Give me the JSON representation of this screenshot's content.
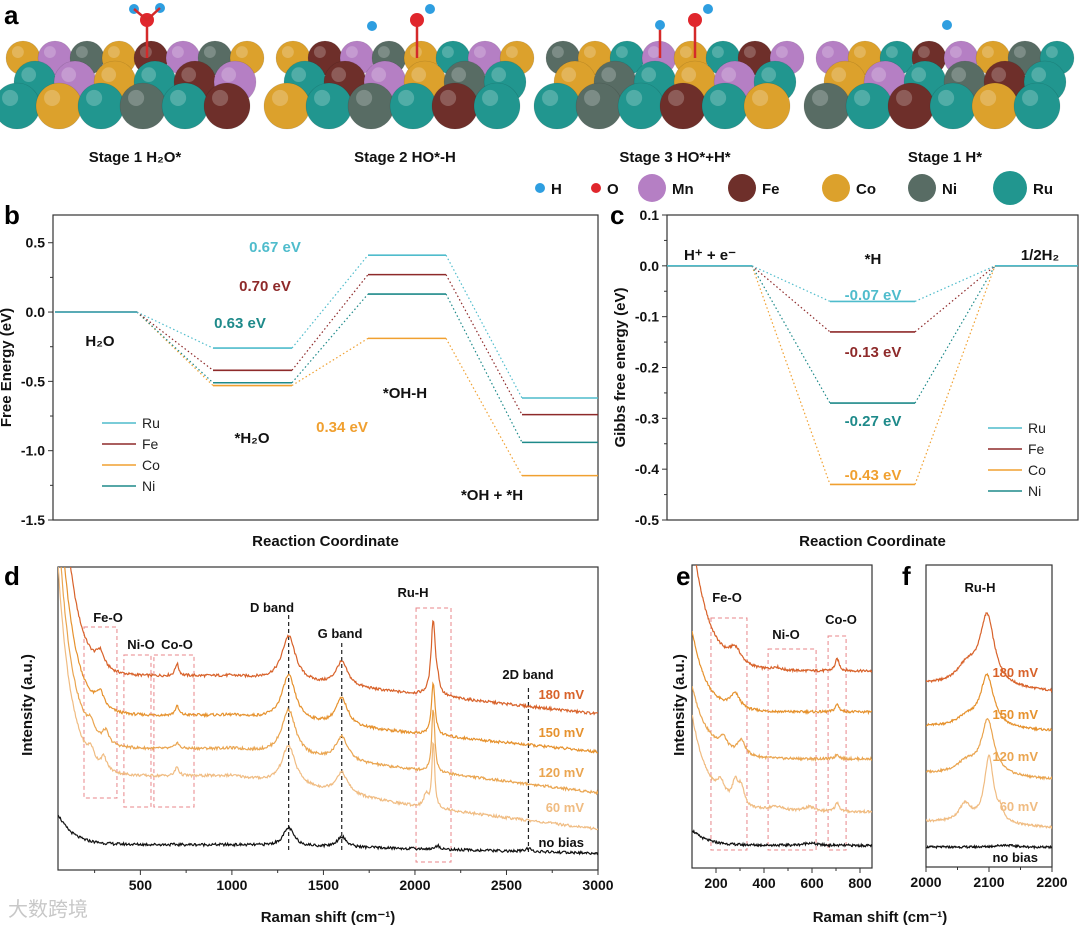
{
  "panel_letters": {
    "a": "a",
    "b": "b",
    "c": "c",
    "d": "d",
    "e": "e",
    "f": "f"
  },
  "structures": {
    "stages": [
      {
        "label": "Stage 1  H₂O*",
        "adsorbate": "H2O"
      },
      {
        "label": "Stage 2  HO*-H",
        "adsorbate": "HO-H"
      },
      {
        "label": "Stage 3  HO*+H*",
        "adsorbate": "HO+H"
      },
      {
        "label": "Stage 1  H*",
        "adsorbate": "H"
      }
    ],
    "atom_legend": [
      {
        "label": "H",
        "color": "#2e9ee0"
      },
      {
        "label": "O",
        "color": "#e0262c"
      },
      {
        "label": "Mn",
        "color": "#b57fc4"
      },
      {
        "label": "Fe",
        "color": "#6e2f2a"
      },
      {
        "label": "Co",
        "color": "#dca12c"
      },
      {
        "label": "Ni",
        "color": "#586c64"
      },
      {
        "label": "Ru",
        "color": "#21968f"
      }
    ]
  },
  "chart_data": [
    {
      "id": "b",
      "type": "line",
      "subtype": "energy-level-diagram",
      "xlabel": "Reaction Coordinate",
      "ylabel": "Free Energy (eV)",
      "ylim": [
        -1.5,
        0.7
      ],
      "yticks": [
        {
          "v": 0.5,
          "label": "0.5"
        },
        {
          "v": 0.0,
          "label": "0.0"
        },
        {
          "v": -0.5,
          "label": "-0.5"
        },
        {
          "v": -1.0,
          "label": "-1.0"
        },
        {
          "v": -1.5,
          "label": "-1.5"
        }
      ],
      "states": [
        "H₂O",
        "*H₂O",
        "*OH-H",
        "*OH + *H"
      ],
      "series": [
        {
          "name": "Ru",
          "color": "#4fbccc",
          "values": [
            0,
            -0.26,
            0.41,
            -0.62
          ]
        },
        {
          "name": "Fe",
          "color": "#8e2a2a",
          "values": [
            0,
            -0.42,
            0.27,
            -0.74
          ]
        },
        {
          "name": "Co",
          "color": "#f0a030",
          "values": [
            0,
            -0.53,
            -0.19,
            -1.18
          ]
        },
        {
          "name": "Ni",
          "color": "#1e8a8a",
          "values": [
            0,
            -0.51,
            0.13,
            -0.94
          ]
        }
      ],
      "annotations": [
        {
          "text": "0.67 eV",
          "color": "#4fbccc"
        },
        {
          "text": "0.70 eV",
          "color": "#8e2a2a"
        },
        {
          "text": "0.63 eV",
          "color": "#1e8a8a"
        },
        {
          "text": "0.34 eV",
          "color": "#f0a030"
        }
      ],
      "legend": "bottom-left"
    },
    {
      "id": "c",
      "type": "line",
      "subtype": "energy-level-diagram",
      "xlabel": "Reaction Coordinate",
      "ylabel": "Gibbs free energy (eV)",
      "ylim": [
        -0.5,
        0.1
      ],
      "yticks": [
        {
          "v": 0.1,
          "label": "0.1"
        },
        {
          "v": 0.0,
          "label": "0.0"
        },
        {
          "v": -0.1,
          "label": "-0.1"
        },
        {
          "v": -0.2,
          "label": "-0.2"
        },
        {
          "v": -0.3,
          "label": "-0.3"
        },
        {
          "v": -0.4,
          "label": "-0.4"
        },
        {
          "v": -0.5,
          "label": "-0.5"
        }
      ],
      "states": [
        "H⁺ + e⁻",
        "*H",
        "1/2H₂"
      ],
      "series": [
        {
          "name": "Ru",
          "color": "#4fbccc",
          "values": [
            0,
            -0.07,
            0
          ]
        },
        {
          "name": "Fe",
          "color": "#8e2a2a",
          "values": [
            0,
            -0.13,
            0
          ]
        },
        {
          "name": "Co",
          "color": "#f0a030",
          "values": [
            0,
            -0.43,
            0
          ]
        },
        {
          "name": "Ni",
          "color": "#1e8a8a",
          "values": [
            0,
            -0.27,
            0
          ]
        }
      ],
      "annotations": [
        {
          "text": "-0.07 eV",
          "color": "#4fbccc"
        },
        {
          "text": "-0.13 eV",
          "color": "#8e2a2a"
        },
        {
          "text": "-0.27 eV",
          "color": "#1e8a8a"
        },
        {
          "text": "-0.43 eV",
          "color": "#f0a030"
        }
      ],
      "legend": "bottom-right"
    },
    {
      "id": "d",
      "type": "line",
      "subtype": "raman-spectra",
      "xlabel": "Raman shift (cm⁻¹)",
      "ylabel": "Intensity (a.u.)",
      "xlim": [
        50,
        3000
      ],
      "ylim": [
        0,
        100
      ],
      "xticks": [
        {
          "v": 500,
          "label": "500"
        },
        {
          "v": 1000,
          "label": "1000"
        },
        {
          "v": 1500,
          "label": "1500"
        },
        {
          "v": 2000,
          "label": "2000"
        },
        {
          "v": 2500,
          "label": "2500"
        },
        {
          "v": 3000,
          "label": "3000"
        }
      ],
      "regions": [
        {
          "label": "Fe-O",
          "x": [
            192,
            372
          ]
        },
        {
          "label": "Ni-O",
          "x": [
            410,
            558
          ]
        },
        {
          "label": "Co-O",
          "x": [
            574,
            793
          ]
        },
        {
          "label": "Ru-H",
          "x": [
            2006,
            2197
          ]
        }
      ],
      "bands": [
        {
          "label": "D band",
          "x": 1310
        },
        {
          "label": "G band",
          "x": 1600
        },
        {
          "label": "2D band",
          "x": 2620
        }
      ],
      "series": [
        {
          "name": "180 mV",
          "color": "#d8622a",
          "baseline": [
            [
              50,
              64
            ],
            [
              1000,
              64
            ],
            [
              2000,
              58
            ],
            [
              3000,
              51.5
            ]
          ],
          "rise": [
            90,
            75
          ],
          "peaks": [
            [
              280,
              5,
              25
            ],
            [
              700,
              4,
              12
            ],
            [
              1310,
              15,
              45
            ],
            [
              1600,
              8,
              40
            ],
            [
              2100,
              25,
              14
            ],
            [
              2125,
              3,
              10
            ]
          ]
        },
        {
          "name": "150 mV",
          "color": "#e6922e",
          "baseline": [
            [
              50,
              51
            ],
            [
              1000,
              51
            ],
            [
              2000,
              45
            ],
            [
              3000,
              39
            ]
          ],
          "rise": [
            80,
            75
          ],
          "peaks": [
            [
              280,
              5,
              25
            ],
            [
              700,
              3,
              12
            ],
            [
              1310,
              15,
              45
            ],
            [
              1600,
              9,
              40
            ],
            [
              2100,
              17,
              12
            ]
          ]
        },
        {
          "name": "120 mV",
          "color": "#eaa550",
          "baseline": [
            [
              50,
              40
            ],
            [
              1000,
              40
            ],
            [
              2000,
              33
            ],
            [
              3000,
              25.5
            ]
          ],
          "rise": [
            75,
            75
          ],
          "peaks": [
            [
              230,
              4,
              20
            ],
            [
              310,
              4,
              20
            ],
            [
              700,
              2,
              12
            ],
            [
              1310,
              15,
              45
            ],
            [
              1600,
              8,
              40
            ],
            [
              2100,
              21,
              10
            ]
          ]
        },
        {
          "name": "60 mV",
          "color": "#f0bc82",
          "baseline": [
            [
              50,
              31
            ],
            [
              1000,
              31
            ],
            [
              2000,
              21
            ],
            [
              3000,
              13.5
            ]
          ],
          "rise": [
            70,
            75
          ],
          "peaks": [
            [
              230,
              4,
              20
            ],
            [
              300,
              4,
              20
            ],
            [
              700,
              3,
              12
            ],
            [
              1310,
              13,
              45
            ],
            [
              1600,
              7,
              40
            ],
            [
              2100,
              22,
              9
            ],
            [
              2060,
              4,
              15
            ]
          ]
        },
        {
          "name": "no bias",
          "color": "#111111",
          "baseline": [
            [
              50,
              8.5
            ],
            [
              1000,
              8.3
            ],
            [
              2000,
              7
            ],
            [
              3000,
              5.5
            ]
          ],
          "rise": [
            10,
            80
          ],
          "peaks": [
            [
              1310,
              6,
              35
            ],
            [
              1600,
              3.5,
              30
            ],
            [
              2125,
              1.2,
              15
            ],
            [
              2620,
              1,
              20
            ]
          ]
        }
      ]
    },
    {
      "id": "e",
      "type": "line",
      "subtype": "raman-spectra",
      "xlabel": "Raman shift (cm⁻¹)",
      "ylabel": "Intensity (a.u.)",
      "xlim": [
        100,
        850
      ],
      "ylim": [
        0,
        100
      ],
      "xticks": [
        {
          "v": 200,
          "label": "200"
        },
        {
          "v": 400,
          "label": "400"
        },
        {
          "v": 600,
          "label": "600"
        },
        {
          "v": 800,
          "label": "800"
        }
      ],
      "regions": [
        {
          "label": "Fe-O",
          "x": [
            179,
            329
          ]
        },
        {
          "label": "Ni-O",
          "x": [
            417,
            617
          ]
        },
        {
          "label": "Co-O",
          "x": [
            667,
            742
          ]
        }
      ],
      "series": [
        {
          "name": "180 mV",
          "color": "#d8622a",
          "baseline": [
            [
              100,
              65
            ],
            [
              850,
              65
            ]
          ],
          "rise": [
            45,
            70
          ],
          "peaks": [
            [
              280,
              5,
              30
            ],
            [
              450,
              1,
              20
            ],
            [
              705,
              4,
              10
            ]
          ]
        },
        {
          "name": "150 mV",
          "color": "#e6922e",
          "baseline": [
            [
              100,
              51.5
            ],
            [
              850,
              51.5
            ]
          ],
          "rise": [
            27,
            60
          ],
          "peaks": [
            [
              280,
              5,
              25
            ],
            [
              705,
              2.5,
              10
            ]
          ]
        },
        {
          "name": "120 mV",
          "color": "#eaa550",
          "baseline": [
            [
              100,
              36
            ],
            [
              850,
              36
            ]
          ],
          "rise": [
            24,
            70
          ],
          "peaks": [
            [
              230,
              4,
              20
            ],
            [
              305,
              5,
              20
            ],
            [
              705,
              1.5,
              10
            ]
          ]
        },
        {
          "name": "60 mV",
          "color": "#f0bc82",
          "baseline": [
            [
              100,
              18.5
            ],
            [
              850,
              18.5
            ]
          ],
          "rise": [
            32,
            70
          ],
          "peaks": [
            [
              220,
              5,
              20
            ],
            [
              280,
              7,
              15
            ],
            [
              305,
              6,
              15
            ],
            [
              450,
              1.5,
              40
            ],
            [
              590,
              1.5,
              30
            ],
            [
              705,
              3,
              10
            ]
          ]
        },
        {
          "name": "no bias",
          "color": "#111111",
          "baseline": [
            [
              100,
              7.6
            ],
            [
              850,
              7.4
            ]
          ],
          "rise": [
            5,
            60
          ],
          "peaks": [
            [
              590,
              0.8,
              30
            ]
          ]
        }
      ]
    },
    {
      "id": "f",
      "type": "line",
      "subtype": "raman-spectra",
      "xlabel": "Raman shift (cm⁻¹)",
      "ylabel": "",
      "xlim": [
        2000,
        2200
      ],
      "ylim": [
        0,
        100
      ],
      "xticks": [
        {
          "v": 2000,
          "label": "2000"
        },
        {
          "v": 2100,
          "label": "2100"
        },
        {
          "v": 2200,
          "label": "2200"
        }
      ],
      "peak_label": "Ru-H",
      "series": [
        {
          "name": "180 mV",
          "color": "#d8622a",
          "baseline": [
            [
              2000,
              60.5
            ],
            [
              2200,
              58
            ]
          ],
          "peaks": [
            [
              2097,
              23,
              14
            ],
            [
              2065,
              6,
              20
            ]
          ]
        },
        {
          "name": "150 mV",
          "color": "#e6922e",
          "baseline": [
            [
              2000,
              46.5
            ],
            [
              2200,
              45
            ]
          ],
          "peaks": [
            [
              2097,
              17,
              13
            ],
            [
              2065,
              3,
              20
            ]
          ]
        },
        {
          "name": "120 mV",
          "color": "#eaa550",
          "baseline": [
            [
              2000,
              31
            ],
            [
              2200,
              29
            ]
          ],
          "peaks": [
            [
              2098,
              18,
              12
            ],
            [
              2065,
              4,
              20
            ]
          ]
        },
        {
          "name": "60 mV",
          "color": "#f0bc82",
          "baseline": [
            [
              2000,
              15
            ],
            [
              2200,
              13
            ]
          ],
          "peaks": [
            [
              2100,
              22,
              9
            ],
            [
              2062,
              6,
              12
            ],
            [
              2118,
              3,
              5
            ]
          ]
        },
        {
          "name": "no bias",
          "color": "#111111",
          "baseline": [
            [
              2000,
              6.6
            ],
            [
              2200,
              6.5
            ]
          ],
          "peaks": [
            [
              2125,
              0.7,
              20
            ]
          ]
        }
      ]
    }
  ],
  "watermark": "大数跨境"
}
